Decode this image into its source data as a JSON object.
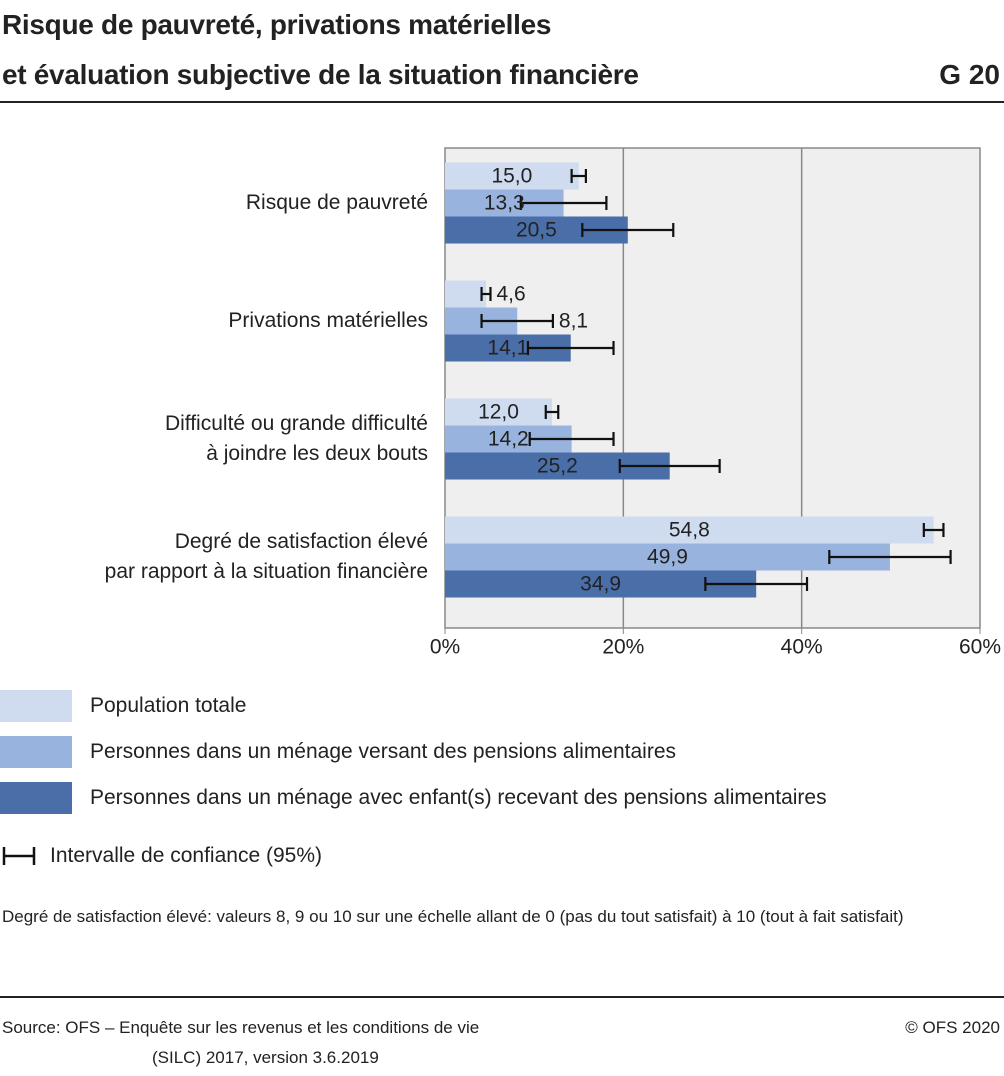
{
  "chart_data": {
    "type": "bar",
    "orientation": "horizontal",
    "title": "Risque de pauvreté, privations matérielles\net évaluation subjective de la situation financière",
    "chart_number": "G 20",
    "categories": [
      "Risque de pauvreté",
      "Privations matérielles",
      "Difficulté ou grande difficulté\nà joindre les deux bouts",
      "Degré de satisfaction élevé\npar rapport à la situation financière"
    ],
    "series": [
      {
        "name": "Population totale",
        "color": "#cfdcf0",
        "label_color": "#222222",
        "values": [
          15.0,
          4.6,
          12.0,
          54.8
        ],
        "value_labels": [
          "15,0",
          "4,6",
          "12,0",
          "54,8"
        ],
        "errors": [
          0.8,
          0.5,
          0.7,
          1.1
        ]
      },
      {
        "name": "Personnes dans un ménage versant des pensions alimentaires",
        "color": "#98b3de",
        "label_color": "#222222",
        "values": [
          13.3,
          8.1,
          14.2,
          49.9
        ],
        "value_labels": [
          "13,3",
          "8,1",
          "14,2",
          "49,9"
        ],
        "errors": [
          4.8,
          4.0,
          4.7,
          6.8
        ]
      },
      {
        "name": "Personnes dans un ménage avec enfant(s) recevant des pensions alimentaires",
        "color": "#4a6ea8",
        "label_color": "#ffffff",
        "values": [
          20.5,
          14.1,
          25.2,
          34.9
        ],
        "value_labels": [
          "20,5",
          "14,1",
          "25,2",
          "34,9"
        ],
        "errors": [
          5.1,
          4.8,
          5.6,
          5.7
        ]
      }
    ],
    "xlim": [
      0,
      60
    ],
    "xticks": [
      {
        "value": 0,
        "label": "0%"
      },
      {
        "value": 20,
        "label": "20%"
      },
      {
        "value": 40,
        "label": "40%"
      },
      {
        "value": 60,
        "label": "60%"
      }
    ],
    "grid": true,
    "ci_label": "Intervalle de confiance (95%)",
    "note": "Degré de satisfaction élevé: valeurs 8, 9 ou 10 sur une échelle allant de 0 (pas du tout satisfait) à 10 (tout à fait satisfait)",
    "source": [
      "Source: OFS – Enquête sur les revenus et les conditions de vie",
      "(SILC) 2017, version 3.6.2019"
    ],
    "copyright": "© OFS 2020"
  }
}
